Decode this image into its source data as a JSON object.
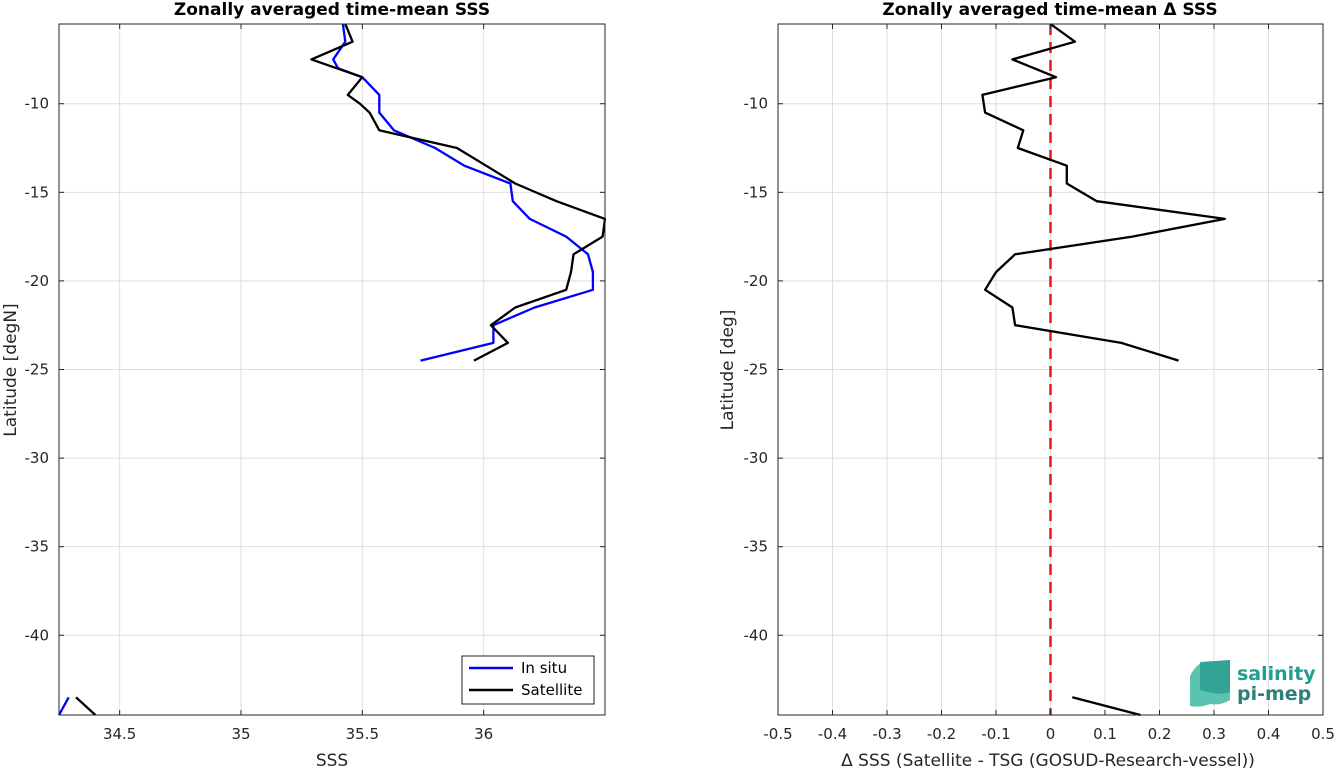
{
  "chart_data": [
    {
      "type": "line",
      "title": "Zonally averaged time-mean SSS",
      "xlabel": "SSS",
      "ylabel": "Latitude [degN]",
      "xlim": [
        34.25,
        36.5
      ],
      "ylim": [
        -44.5,
        -5.5
      ],
      "xticks": [
        34.5,
        35,
        35.5,
        36
      ],
      "xtick_labels": [
        "34.5",
        "35",
        "35.5",
        "36"
      ],
      "yticks": [
        -10,
        -15,
        -20,
        -25,
        -30,
        -35,
        -40
      ],
      "ytick_labels": [
        "-10",
        "-15",
        "-20",
        "-25",
        "-30",
        "-35",
        "-40"
      ],
      "grid": true,
      "legend_position": "bottom-right",
      "series": [
        {
          "name": "In situ",
          "color": "#0000ff",
          "segments": [
            [
              [
                35.42,
                -5.5
              ],
              [
                35.43,
                -6.5
              ],
              [
                35.38,
                -7.5
              ],
              [
                35.4,
                -8.0
              ],
              [
                35.5,
                -8.5
              ],
              [
                35.57,
                -9.5
              ],
              [
                35.57,
                -10.5
              ],
              [
                35.6,
                -11.0
              ],
              [
                35.63,
                -11.5
              ],
              [
                35.8,
                -12.5
              ],
              [
                35.92,
                -13.5
              ],
              [
                36.11,
                -14.5
              ],
              [
                36.12,
                -15.5
              ],
              [
                36.19,
                -16.5
              ],
              [
                36.34,
                -17.5
              ],
              [
                36.43,
                -18.5
              ],
              [
                36.45,
                -19.5
              ],
              [
                36.45,
                -20.5
              ],
              [
                36.21,
                -21.5
              ],
              [
                36.04,
                -22.5
              ],
              [
                36.04,
                -23.5
              ],
              [
                35.74,
                -24.5
              ]
            ],
            [
              [
                34.25,
                -44.5
              ],
              [
                34.29,
                -43.5
              ]
            ]
          ]
        },
        {
          "name": "Satellite",
          "color": "#000000",
          "segments": [
            [
              [
                35.43,
                -5.5
              ],
              [
                35.46,
                -6.5
              ],
              [
                35.29,
                -7.5
              ],
              [
                35.5,
                -8.5
              ],
              [
                35.44,
                -9.5
              ],
              [
                35.49,
                -10.0
              ],
              [
                35.53,
                -10.5
              ],
              [
                35.57,
                -11.5
              ],
              [
                35.89,
                -12.5
              ],
              [
                36.01,
                -13.5
              ],
              [
                36.13,
                -14.5
              ],
              [
                36.3,
                -15.5
              ],
              [
                36.5,
                -16.5
              ],
              [
                36.49,
                -17.5
              ],
              [
                36.37,
                -18.5
              ],
              [
                36.36,
                -19.5
              ],
              [
                36.34,
                -20.5
              ],
              [
                36.13,
                -21.5
              ],
              [
                36.03,
                -22.5
              ],
              [
                36.1,
                -23.5
              ],
              [
                35.96,
                -24.5
              ]
            ],
            [
              [
                34.32,
                -43.5
              ],
              [
                34.4,
                -44.5
              ]
            ]
          ]
        }
      ]
    },
    {
      "type": "line",
      "title": "Zonally averaged time-mean Δ SSS",
      "xlabel": "Δ SSS (Satellite - TSG (GOSUD-Research-vessel))",
      "ylabel": "Latitude [deg]",
      "xlim": [
        -0.5,
        0.5
      ],
      "ylim": [
        -44.5,
        -5.5
      ],
      "xticks": [
        -0.5,
        -0.4,
        -0.3,
        -0.2,
        -0.1,
        0,
        0.1,
        0.2,
        0.3,
        0.4,
        0.5
      ],
      "xtick_labels": [
        "-0.5",
        "-0.4",
        "-0.3",
        "-0.2",
        "-0.1",
        "0",
        "0.1",
        "0.2",
        "0.3",
        "0.4",
        "0.5"
      ],
      "yticks": [
        -10,
        -15,
        -20,
        -25,
        -30,
        -35,
        -40
      ],
      "ytick_labels": [
        "-10",
        "-15",
        "-20",
        "-25",
        "-30",
        "-35",
        "-40"
      ],
      "grid": true,
      "reference_line": {
        "x": 0,
        "color": "#e41a1c",
        "style": "dashed"
      },
      "series": [
        {
          "color": "#000000",
          "segments": [
            [
              [
                0.0,
                -5.5
              ],
              [
                0.045,
                -6.5
              ],
              [
                -0.07,
                -7.5
              ],
              [
                0.01,
                -8.5
              ],
              [
                -0.125,
                -9.5
              ],
              [
                -0.12,
                -10.5
              ],
              [
                -0.05,
                -11.5
              ],
              [
                -0.06,
                -12.5
              ],
              [
                0.03,
                -13.5
              ],
              [
                0.03,
                -14.5
              ],
              [
                0.085,
                -15.5
              ],
              [
                0.32,
                -16.5
              ],
              [
                0.15,
                -17.5
              ],
              [
                -0.065,
                -18.5
              ],
              [
                -0.1,
                -19.5
              ],
              [
                -0.12,
                -20.5
              ],
              [
                -0.07,
                -21.5
              ],
              [
                -0.065,
                -22.5
              ],
              [
                0.13,
                -23.5
              ],
              [
                0.235,
                -24.5
              ]
            ],
            [
              [
                0.04,
                -43.5
              ],
              [
                0.165,
                -44.5
              ]
            ]
          ]
        }
      ]
    }
  ],
  "logo": {
    "line1": "salinity",
    "line2": "pi-mep"
  }
}
